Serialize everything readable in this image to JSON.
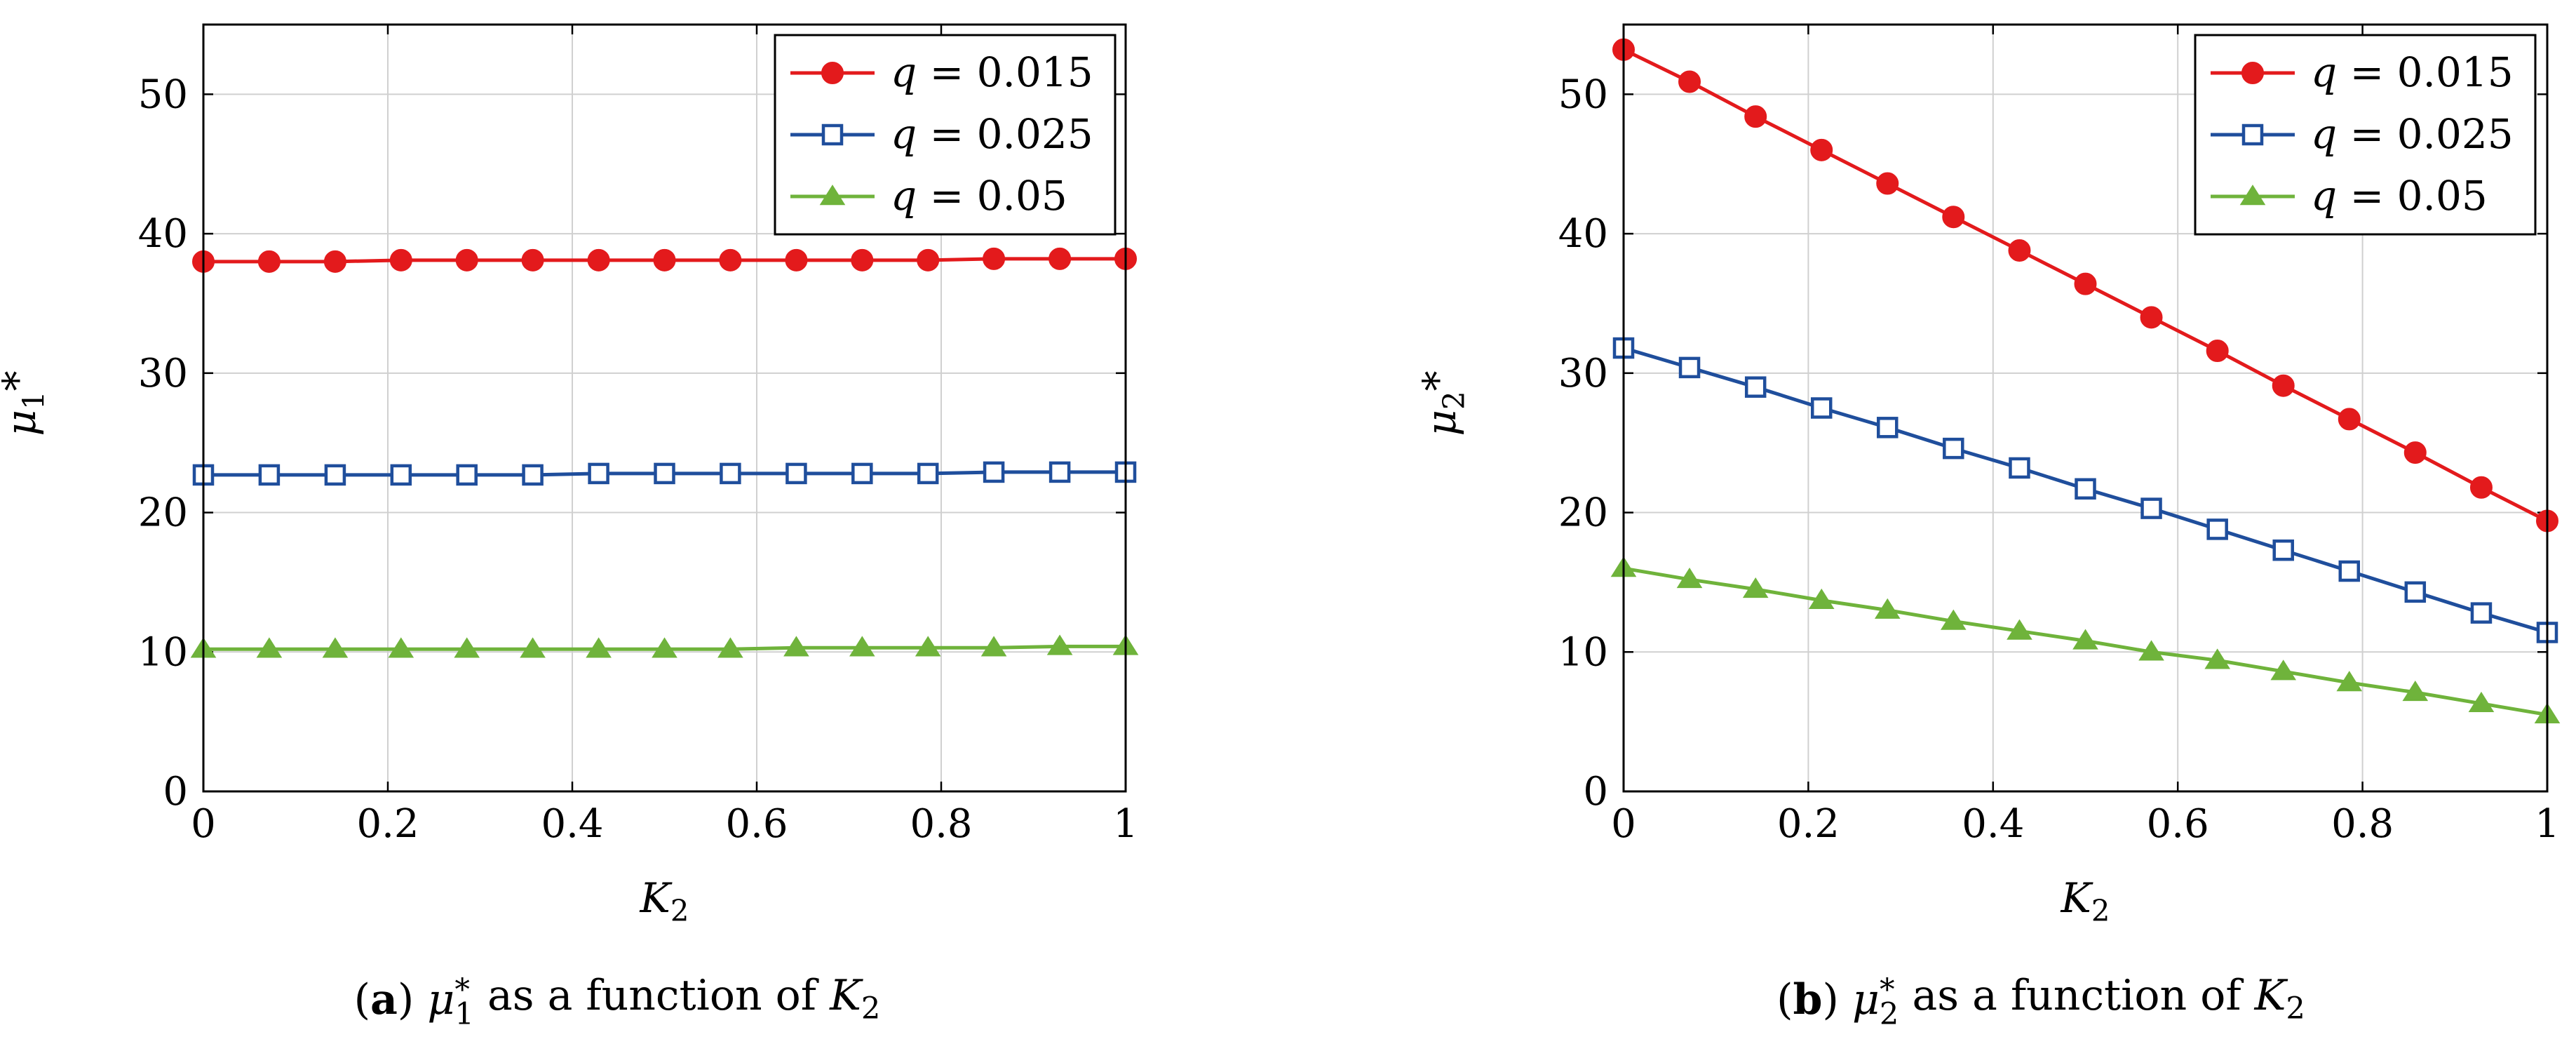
{
  "chart_data": [
    {
      "type": "line",
      "panel": "a",
      "ylabel": "μ1*",
      "xlabel": "K2",
      "xlim": [
        0,
        1
      ],
      "ylim": [
        0,
        55
      ],
      "xticks": [
        0,
        0.2,
        0.4,
        0.6,
        0.8,
        1
      ],
      "xtick_labels": [
        "0",
        "0.2",
        "0.4",
        "0.6",
        "0.8",
        "1"
      ],
      "yticks": [
        0,
        10,
        20,
        30,
        40,
        50
      ],
      "ytick_labels": [
        "0",
        "10",
        "20",
        "30",
        "40",
        "50"
      ],
      "grid": true,
      "legend_position": "top-right",
      "caption_letter": "(a)",
      "caption_text": "μ1* as a function of K2",
      "x": [
        0,
        0.0714,
        0.1429,
        0.2143,
        0.2857,
        0.3571,
        0.4286,
        0.5,
        0.5714,
        0.6429,
        0.7143,
        0.7857,
        0.8571,
        0.9286,
        1
      ],
      "series": [
        {
          "name": "q = 0.015",
          "color": "#e31a1c",
          "marker": "circle",
          "values": [
            38.0,
            38.0,
            38.0,
            38.1,
            38.1,
            38.1,
            38.1,
            38.1,
            38.1,
            38.1,
            38.1,
            38.1,
            38.2,
            38.2,
            38.2
          ]
        },
        {
          "name": "q = 0.025",
          "color": "#1f4e9c",
          "marker": "square",
          "values": [
            22.7,
            22.7,
            22.7,
            22.7,
            22.7,
            22.7,
            22.8,
            22.8,
            22.8,
            22.8,
            22.8,
            22.8,
            22.9,
            22.9,
            22.9
          ]
        },
        {
          "name": "q = 0.05",
          "color": "#6fb33b",
          "marker": "triangle",
          "values": [
            10.2,
            10.2,
            10.2,
            10.2,
            10.2,
            10.2,
            10.2,
            10.2,
            10.2,
            10.3,
            10.3,
            10.3,
            10.3,
            10.4,
            10.4
          ]
        }
      ]
    },
    {
      "type": "line",
      "panel": "b",
      "ylabel": "μ2*",
      "xlabel": "K2",
      "xlim": [
        0,
        1
      ],
      "ylim": [
        0,
        55
      ],
      "xticks": [
        0,
        0.2,
        0.4,
        0.6,
        0.8,
        1
      ],
      "xtick_labels": [
        "0",
        "0.2",
        "0.4",
        "0.6",
        "0.8",
        "1"
      ],
      "yticks": [
        0,
        10,
        20,
        30,
        40,
        50
      ],
      "ytick_labels": [
        "0",
        "10",
        "20",
        "30",
        "40",
        "50"
      ],
      "grid": true,
      "legend_position": "top-right",
      "caption_letter": "(b)",
      "caption_text": "μ2* as a function of K2",
      "x": [
        0,
        0.0714,
        0.1429,
        0.2143,
        0.2857,
        0.3571,
        0.4286,
        0.5,
        0.5714,
        0.6429,
        0.7143,
        0.7857,
        0.8571,
        0.9286,
        1
      ],
      "series": [
        {
          "name": "q = 0.015",
          "color": "#e31a1c",
          "marker": "circle",
          "values": [
            53.2,
            50.9,
            48.4,
            46.0,
            43.6,
            41.2,
            38.8,
            36.4,
            34.0,
            31.6,
            29.1,
            26.7,
            24.3,
            21.8,
            19.4
          ]
        },
        {
          "name": "q = 0.025",
          "color": "#1f4e9c",
          "marker": "square",
          "values": [
            31.8,
            30.4,
            29.0,
            27.5,
            26.1,
            24.6,
            23.2,
            21.7,
            20.3,
            18.8,
            17.3,
            15.8,
            14.3,
            12.8,
            11.4
          ]
        },
        {
          "name": "q = 0.05",
          "color": "#6fb33b",
          "marker": "triangle",
          "values": [
            16.0,
            15.2,
            14.5,
            13.7,
            13.0,
            12.2,
            11.5,
            10.8,
            10.0,
            9.4,
            8.6,
            7.8,
            7.1,
            6.3,
            5.5
          ]
        }
      ]
    }
  ]
}
